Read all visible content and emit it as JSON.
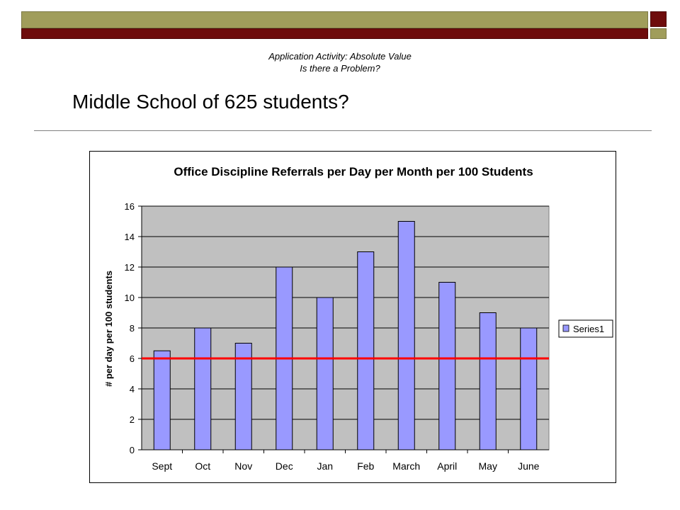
{
  "slide": {
    "subtitle_line1": "Application Activity: Absolute Value",
    "subtitle_line2": "Is there a Problem?",
    "heading": "Middle School of 625 students?"
  },
  "colors": {
    "band_olive": "#a09d5b",
    "band_maroon": "#6e0c0c",
    "plot_background": "#c0c0c0",
    "bar_fill": "#9999ff",
    "threshold_line": "#ff0000"
  },
  "chart_data": {
    "type": "bar",
    "title": "Office Discipline Referrals per Day per Month per 100 Students",
    "xlabel": "",
    "ylabel": "# per day per 100 students",
    "categories": [
      "Sept",
      "Oct",
      "Nov",
      "Dec",
      "Jan",
      "Feb",
      "March",
      "April",
      "May",
      "June"
    ],
    "series": [
      {
        "name": "Series1",
        "values": [
          6.5,
          8,
          7,
          12,
          10,
          13,
          15,
          11,
          9,
          8
        ]
      }
    ],
    "reference_line": {
      "value": 6
    },
    "ylim": [
      0,
      16
    ],
    "yticks": [
      0,
      2,
      4,
      6,
      8,
      10,
      12,
      14,
      16
    ],
    "grid": true,
    "legend_position": "right"
  }
}
